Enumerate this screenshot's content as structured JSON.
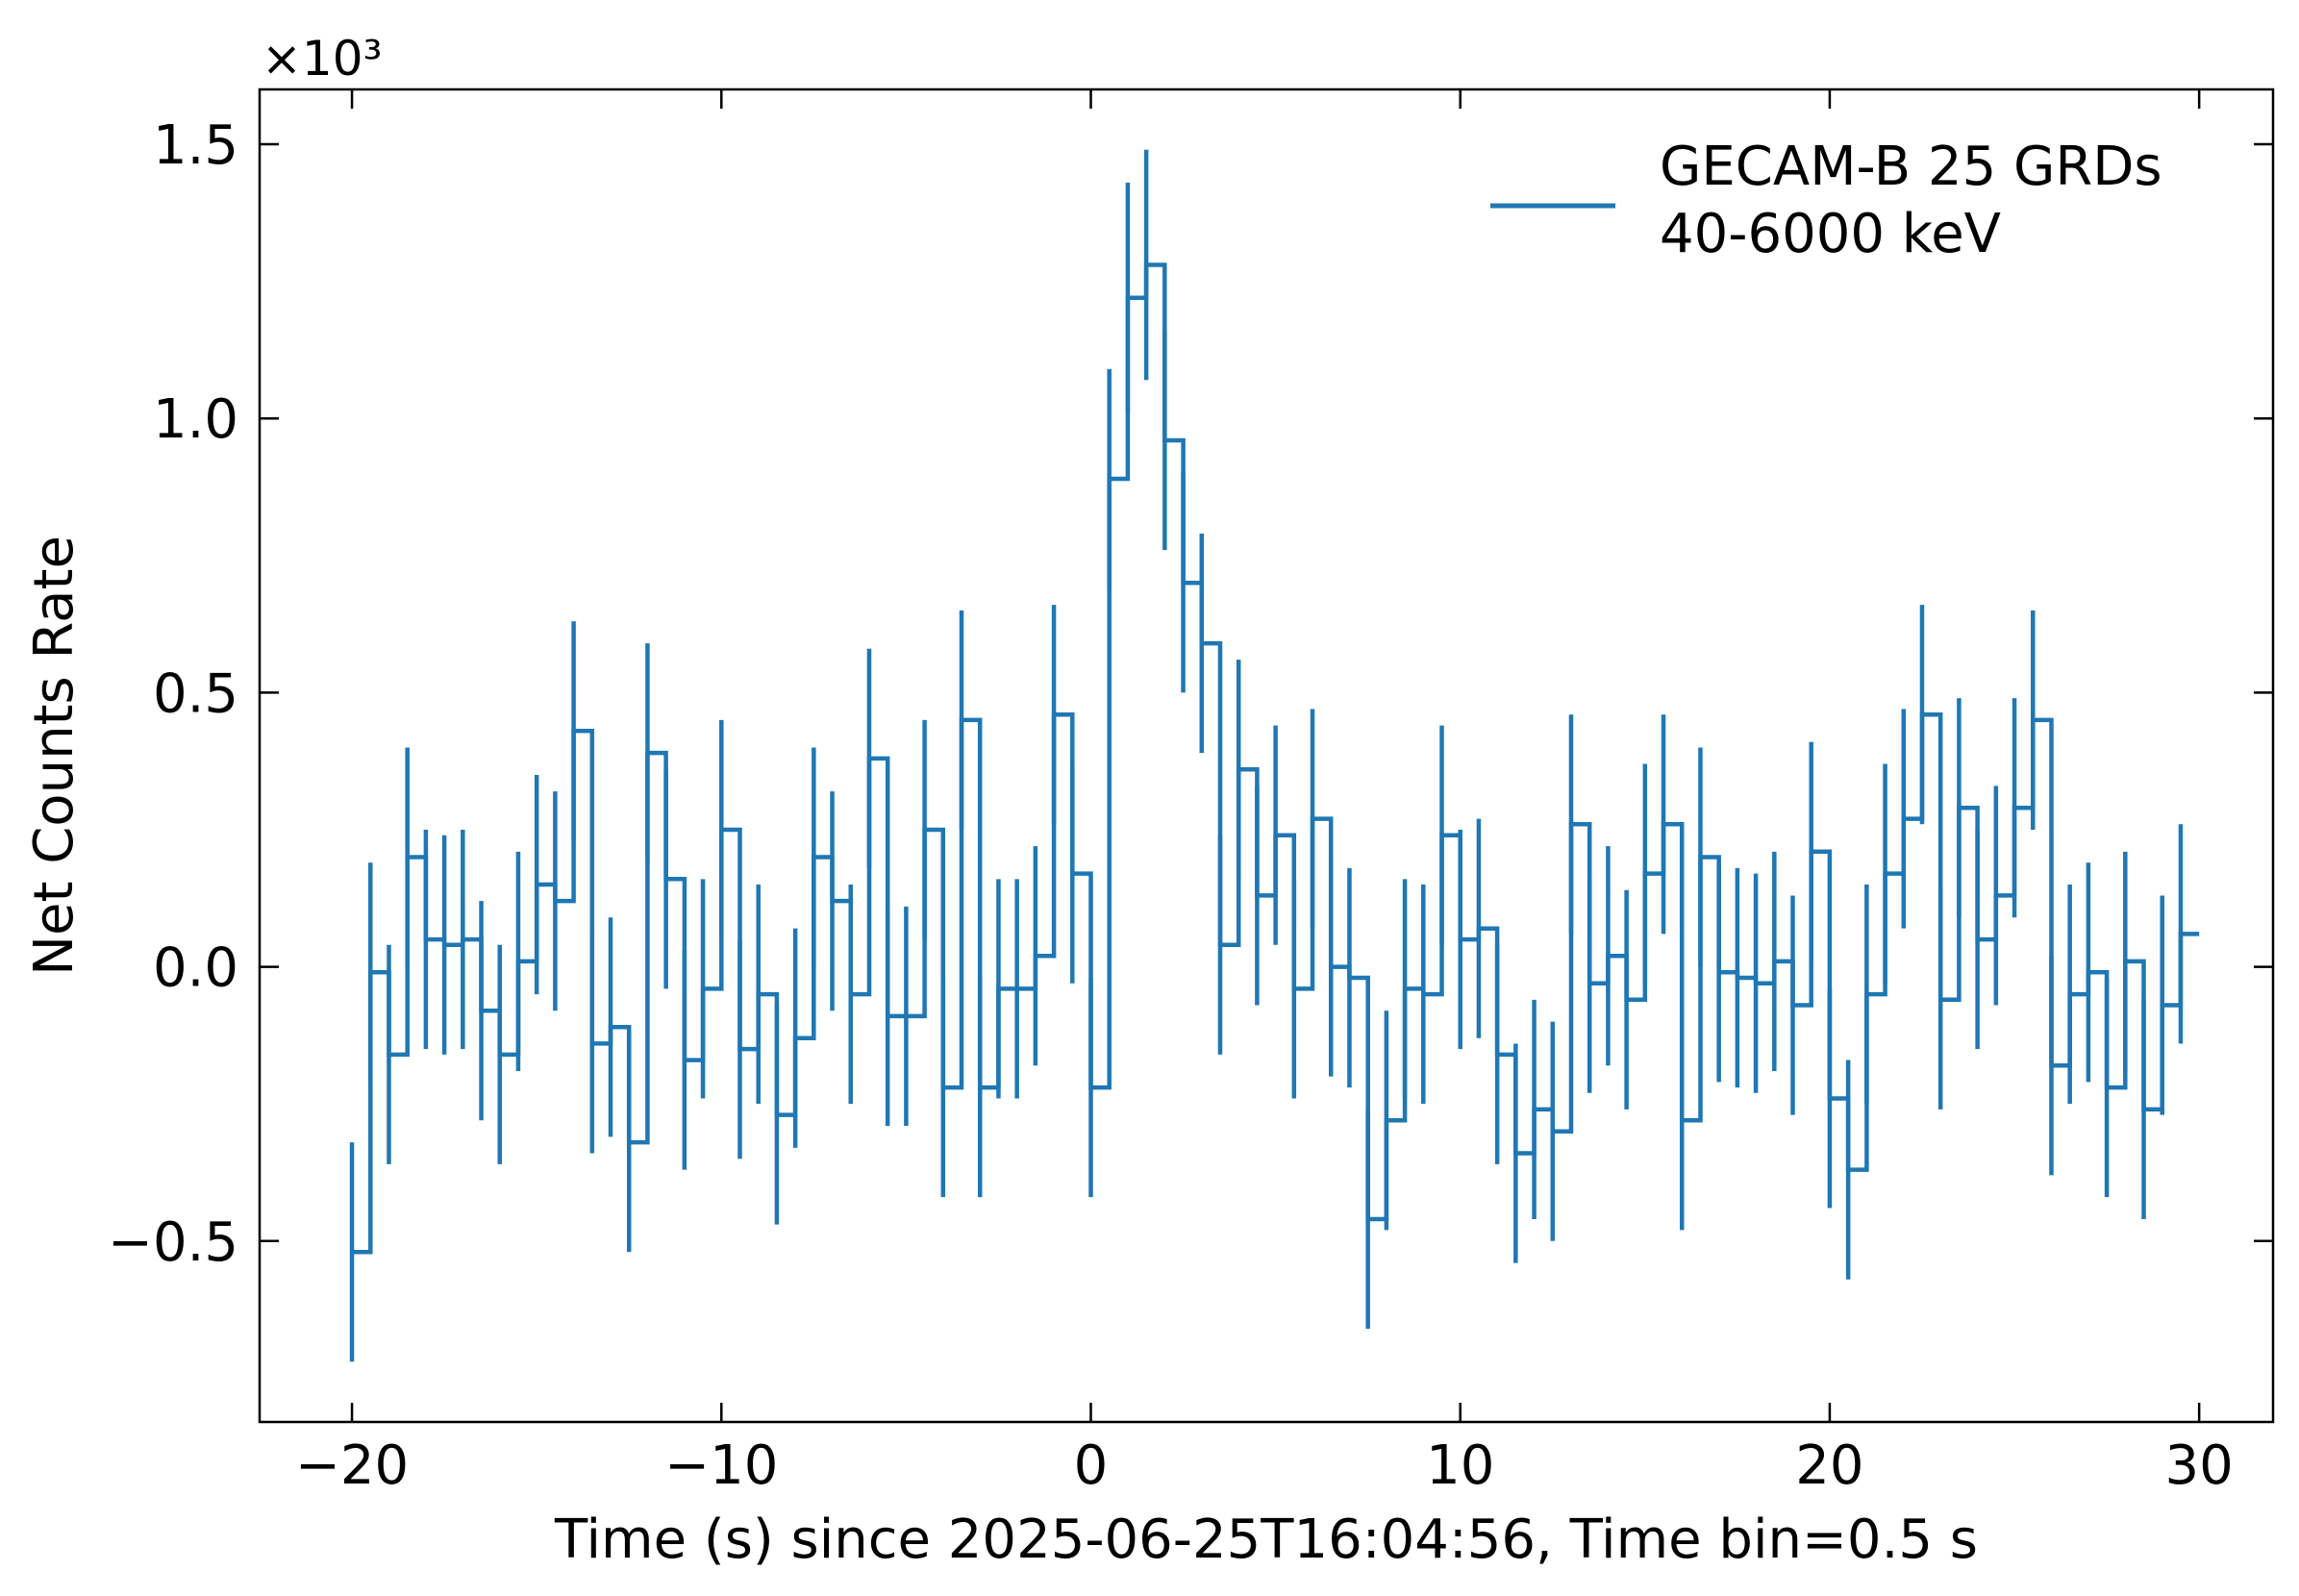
{
  "chart_data": {
    "type": "line",
    "xlabel": "Time (s) since 2025-06-25T16:04:56, Time bin=0.5 s",
    "ylabel": "Net Counts Rate",
    "scale_label": "×10³",
    "legend_label_line1": "GECAM-B 25 GRDs",
    "legend_label_line2": "40-6000 keV",
    "legend_position": "top-right",
    "grid": false,
    "xlim": [
      -22.5,
      32
    ],
    "ylim": [
      -0.83,
      1.6
    ],
    "xticks": [
      -20,
      -10,
      0,
      10,
      20,
      30
    ],
    "xtick_labels": [
      "−20",
      "−10",
      "0",
      "10",
      "20",
      "30"
    ],
    "yticks": [
      -0.5,
      0.0,
      0.5,
      1.0,
      1.5
    ],
    "ytick_labels": [
      "−0.5",
      "0.0",
      "0.5",
      "1.0",
      "1.5"
    ],
    "bin_width": 0.5,
    "x_start": -20.0,
    "values": [
      -0.52,
      -0.01,
      -0.16,
      0.2,
      0.05,
      0.04,
      0.05,
      -0.08,
      -0.16,
      0.01,
      0.15,
      0.12,
      0.43,
      -0.14,
      -0.11,
      -0.32,
      0.39,
      0.16,
      -0.17,
      -0.04,
      0.25,
      -0.15,
      -0.05,
      -0.27,
      -0.13,
      0.2,
      0.12,
      -0.05,
      0.38,
      -0.09,
      -0.09,
      0.25,
      -0.22,
      0.45,
      -0.22,
      -0.04,
      -0.04,
      0.02,
      0.46,
      0.17,
      -0.22,
      0.89,
      1.22,
      1.28,
      0.96,
      0.7,
      0.59,
      0.04,
      0.36,
      0.13,
      0.24,
      -0.04,
      0.27,
      0.0,
      -0.02,
      -0.46,
      -0.28,
      -0.04,
      -0.05,
      0.24,
      0.05,
      0.07,
      -0.16,
      -0.34,
      -0.26,
      -0.3,
      0.26,
      -0.03,
      0.02,
      -0.06,
      0.17,
      0.26,
      -0.28,
      0.2,
      -0.01,
      -0.02,
      -0.03,
      0.01,
      -0.07,
      0.21,
      -0.24,
      -0.37,
      -0.05,
      0.17,
      0.27,
      0.46,
      -0.06,
      0.29,
      0.05,
      0.13,
      0.29,
      0.45,
      -0.18,
      -0.05,
      -0.01,
      -0.22,
      0.01,
      -0.26,
      -0.07,
      0.06
    ],
    "errors": [
      0.2,
      0.2,
      0.2,
      0.2,
      0.2,
      0.2,
      0.2,
      0.2,
      0.2,
      0.2,
      0.2,
      0.2,
      0.2,
      0.2,
      0.2,
      0.2,
      0.2,
      0.2,
      0.2,
      0.2,
      0.2,
      0.2,
      0.2,
      0.2,
      0.2,
      0.2,
      0.2,
      0.2,
      0.2,
      0.2,
      0.2,
      0.2,
      0.2,
      0.2,
      0.2,
      0.2,
      0.2,
      0.2,
      0.2,
      0.2,
      0.2,
      0.2,
      0.21,
      0.21,
      0.2,
      0.2,
      0.2,
      0.2,
      0.2,
      0.2,
      0.2,
      0.2,
      0.2,
      0.2,
      0.2,
      0.2,
      0.2,
      0.2,
      0.2,
      0.2,
      0.2,
      0.2,
      0.2,
      0.2,
      0.2,
      0.2,
      0.2,
      0.2,
      0.2,
      0.2,
      0.2,
      0.2,
      0.2,
      0.2,
      0.2,
      0.2,
      0.2,
      0.2,
      0.2,
      0.2,
      0.2,
      0.2,
      0.2,
      0.2,
      0.2,
      0.2,
      0.2,
      0.2,
      0.2,
      0.2,
      0.2,
      0.2,
      0.2,
      0.2,
      0.2,
      0.2,
      0.2,
      0.2,
      0.2,
      0.2
    ],
    "line_color": "#1f77b4"
  }
}
